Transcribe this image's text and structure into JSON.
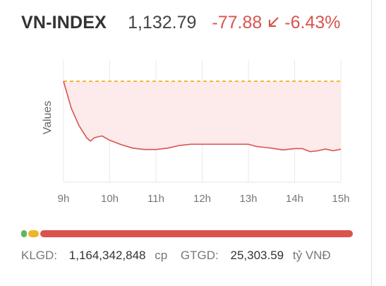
{
  "header": {
    "index_name": "VN-INDEX",
    "index_value": "1,132.79",
    "change": "-77.88",
    "change_pct": "-6.43%"
  },
  "colors": {
    "down": "#d9534f",
    "reference": "#f0b429",
    "up": "#5cb85c",
    "area_fill": "#fdeaea"
  },
  "icons": {
    "direction": "arrow-down-left-icon"
  },
  "chart_data": {
    "type": "area",
    "title": "",
    "xlabel": "",
    "ylabel": "Values",
    "x_ticks": [
      "9h",
      "10h",
      "11h",
      "12h",
      "13h",
      "14h",
      "15h"
    ],
    "reference_value": 1210.67,
    "ylim": [
      1095,
      1235
    ],
    "grid": true,
    "series": [
      {
        "x": [
          "09:00",
          "09:10",
          "09:20",
          "09:30",
          "09:35",
          "09:40",
          "09:50",
          "10:00",
          "10:15",
          "10:30",
          "10:45",
          "11:00",
          "11:15",
          "11:30",
          "11:45",
          "12:00",
          "12:30",
          "13:00",
          "13:10",
          "13:30",
          "13:45",
          "14:00",
          "14:10",
          "14:20",
          "14:30",
          "14:40",
          "14:50",
          "15:00"
        ],
        "values": [
          1210.67,
          1180,
          1160,
          1146,
          1142,
          1146,
          1148,
          1143,
          1138,
          1134,
          1132.5,
          1132.5,
          1134,
          1137,
          1138.5,
          1138.5,
          1138.5,
          1138.5,
          1136,
          1134,
          1132,
          1133.5,
          1133.5,
          1130,
          1131,
          1133,
          1131,
          1132.79
        ]
      }
    ]
  },
  "breadth_bar": {
    "advancers": 5,
    "unchanged": 12,
    "decliners": 350
  },
  "footer": {
    "klgd_label": "KLGD:",
    "klgd_value": "1,164,342,848",
    "klgd_unit": "cp",
    "gtgd_label": "GTGD:",
    "gtgd_value": "25,303.59",
    "gtgd_unit": "tỷ VNĐ"
  }
}
